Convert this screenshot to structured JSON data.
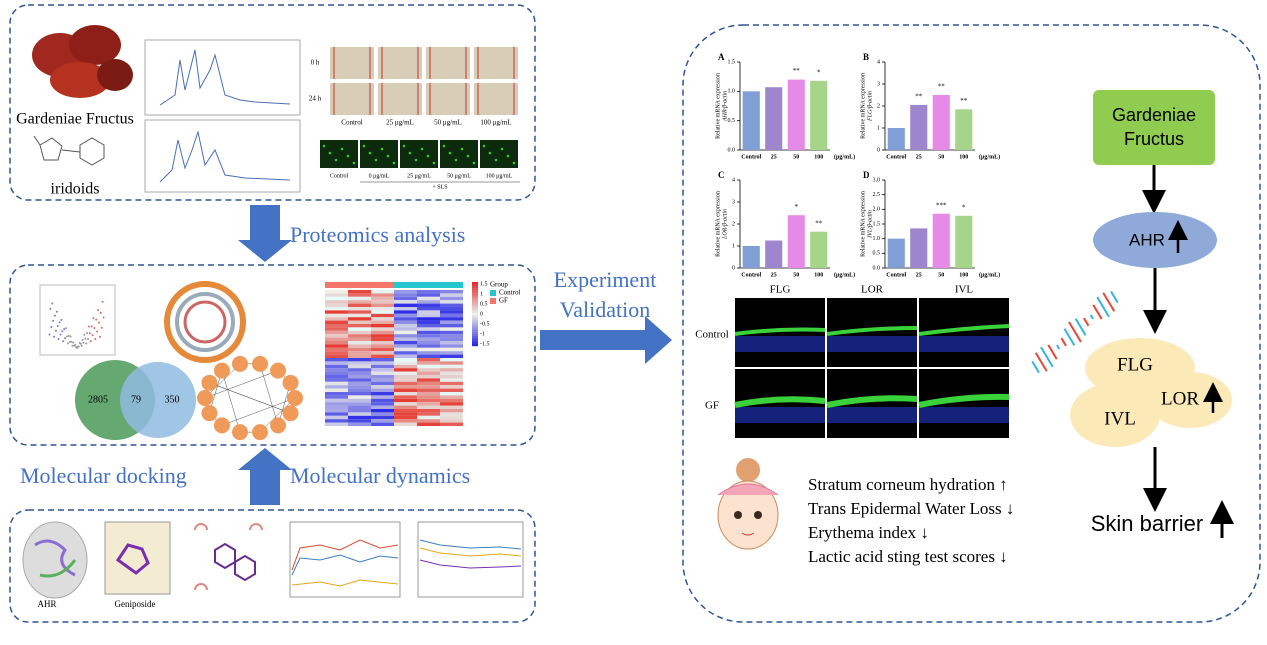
{
  "top_panel": {
    "fruit_label": "Gardeniae Fructus",
    "compound_label": "iridoids",
    "wound_rows": [
      "0 h",
      "24 h"
    ],
    "wound_cols": [
      "Control",
      "25 μg/mL",
      "50 μg/mL",
      "100 μg/mL"
    ],
    "fluor_cols": [
      "Control",
      "0 μg/mL",
      "25 μg/mL",
      "50 μg/mL",
      "100 μg/mL"
    ],
    "fluor_note": "+ SLS"
  },
  "proteomics_label": "Proteomics analysis",
  "middle_panel": {
    "venn": [
      2805,
      79,
      350
    ],
    "heatmap_legend": {
      "title": "Group",
      "groups": [
        "Control",
        "GF"
      ],
      "scale": [
        1.5,
        1,
        0.5,
        0,
        -0.5,
        -1,
        -1.5
      ]
    }
  },
  "docking_label": "Molecular docking",
  "dynamics_label": "Molecular dynamics",
  "bottom_panel": {
    "protein_label": "AHR",
    "ligand_label": "Geniposide"
  },
  "validation_label": [
    "Experiment",
    "Validation"
  ],
  "bar_charts": [
    {
      "type": "bar",
      "panel": "A",
      "ylabel": [
        "Relative mRNA expression",
        "AHR/β-actin"
      ],
      "categories": [
        "Control",
        "25",
        "50",
        "100"
      ],
      "unit": "(μg/mL)",
      "values": [
        1.0,
        1.07,
        1.2,
        1.18
      ],
      "annotations": [
        null,
        null,
        "**",
        "*"
      ],
      "colors": [
        "#7f9fd6",
        "#9e86cf",
        "#e58ae6",
        "#a6d58a"
      ],
      "ylim": [
        0,
        1.5
      ],
      "yticks": [
        {
          "value": 0,
          "label": "0.0"
        },
        {
          "value": 0.5,
          "label": "0.5"
        },
        {
          "value": 1,
          "label": "1.0"
        },
        {
          "value": 1.5,
          "label": "1.5"
        }
      ]
    },
    {
      "type": "bar",
      "panel": "B",
      "ylabel": [
        "Relative mRNA expression",
        "FLG/β-actin"
      ],
      "categories": [
        "Control",
        "25",
        "50",
        "100"
      ],
      "unit": "(μg/mL)",
      "values": [
        1.0,
        2.05,
        2.5,
        1.85
      ],
      "annotations": [
        null,
        "**",
        "**",
        "**"
      ],
      "colors": [
        "#7f9fd6",
        "#9e86cf",
        "#e58ae6",
        "#a6d58a"
      ],
      "ylim": [
        0,
        4
      ],
      "yticks": [
        0,
        1,
        2,
        3,
        4
      ]
    },
    {
      "type": "bar",
      "panel": "C",
      "ylabel": [
        "Relative mRNA expression",
        "LOR/β-actin"
      ],
      "categories": [
        "Control",
        "25",
        "50",
        "100"
      ],
      "unit": "(μg/mL)",
      "values": [
        1.0,
        1.25,
        2.4,
        1.65
      ],
      "annotations": [
        null,
        null,
        "*",
        "**"
      ],
      "colors": [
        "#7f9fd6",
        "#9e86cf",
        "#e58ae6",
        "#a6d58a"
      ],
      "ylim": [
        0,
        4
      ],
      "yticks": [
        0,
        1,
        2,
        3,
        4
      ]
    },
    {
      "type": "bar",
      "panel": "D",
      "ylabel": [
        "Relative mRNA expression",
        "IVL/β-actin"
      ],
      "categories": [
        "Control",
        "25",
        "50",
        "100"
      ],
      "unit": "(μg/mL)",
      "values": [
        1.0,
        1.35,
        1.85,
        1.78
      ],
      "annotations": [
        null,
        null,
        "***",
        "*"
      ],
      "colors": [
        "#7f9fd6",
        "#9e86cf",
        "#e58ae6",
        "#a6d58a"
      ],
      "ylim": [
        0,
        3
      ],
      "yticks": [
        {
          "value": 0,
          "label": "0.0"
        },
        {
          "value": 0.5,
          "label": "0.5"
        },
        {
          "value": 1,
          "label": "1.0"
        },
        {
          "value": 1.5,
          "label": "1.5"
        },
        {
          "value": 2,
          "label": "2.0"
        },
        {
          "value": 2.5,
          "label": "2.5"
        },
        {
          "value": 3,
          "label": "3.0"
        }
      ]
    }
  ],
  "staining": {
    "columns": [
      "FLG",
      "LOR",
      "IVL"
    ],
    "rows": [
      "Control",
      "GF"
    ]
  },
  "outcomes": [
    "Stratum corneum hydration ↑",
    "Trans Epidermal Water Loss ↓",
    "Erythema index ↓",
    "Lactic acid sting test scores ↓"
  ],
  "pathway": {
    "source": [
      "Gardeniae",
      "Fructus"
    ],
    "receptor": "AHR",
    "proteins": [
      "FLG",
      "LOR",
      "IVL"
    ],
    "outcome": "Skin barrier"
  }
}
